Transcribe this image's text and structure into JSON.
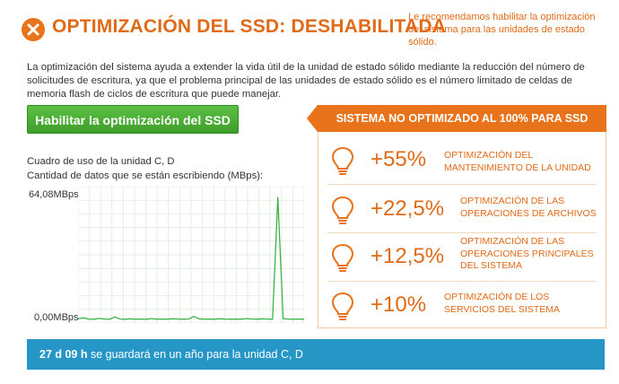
{
  "header": {
    "title": "OPTIMIZACIÓN DEL SSD: DESHABILITADA",
    "recommendation": "Le recomendamos habilitar la optimización del sistema para las unidades de estado sólido."
  },
  "description": "La optimización del sistema ayuda a extender la vida útil de la unidad de estado sólido mediante la reducción del número de solicitudes de escritura, ya que el problema principal de las unidades de estado sólido es el número limitado de celdas de memoria flash de ciclos de escritura que puede manejar.",
  "enable_button": "Habilitar la optimización del SSD",
  "chart": {
    "title_line1": "Cuadro de uso de la unidad C, D",
    "title_line2": "Cantidad de datos que se están escribiendo (MBps):",
    "y_max_label": "64,08MBps",
    "y_min_label": "0,00MBps"
  },
  "chart_data": {
    "type": "line",
    "ylim": [
      0,
      64.08
    ],
    "y_unit": "MBps",
    "grid": true,
    "series": [
      {
        "color": "#3cb34a",
        "values": [
          0.3,
          0.8,
          0.2,
          0.1,
          0.5,
          0.2,
          0.1,
          1.2,
          0.2,
          0.1,
          0.3,
          0.1,
          0.2,
          0.1,
          0.4,
          0.1,
          0.2,
          0.1,
          0.3,
          0.2,
          0.1,
          0.2,
          1.5,
          0.3,
          0.1,
          0.2,
          0.1,
          0.3,
          0.2,
          0.1,
          0.2,
          0.1,
          0.4,
          0.2,
          0.1,
          0.3,
          0.2,
          0.1,
          61.5,
          0.3,
          0.2,
          0.1,
          0.2,
          0.1
        ]
      }
    ]
  },
  "status_banner": "SISTEMA NO OPTIMIZADO AL 100% PARA SSD",
  "optimizations": [
    {
      "percent": "+55%",
      "label": "OPTIMIZACIÓN DEL MANTENIMIENTO DE LA UNIDAD",
      "icon": "lightbulb-icon"
    },
    {
      "percent": "+22,5%",
      "label": "OPTIMIZACIÓN DE LAS OPERACIONES DE ARCHIVOS",
      "icon": "lightbulb-icon"
    },
    {
      "percent": "+12,5%",
      "label": "OPTIMIZACIÓN DE LAS OPERACIONES PRINCIPALES DEL SISTEMA",
      "icon": "lightbulb-icon"
    },
    {
      "percent": "+10%",
      "label": "OPTIMIZACIÓN DE LOS SERVICIOS DEL SISTEMA",
      "icon": "lightbulb-icon"
    }
  ],
  "footer": {
    "time": "27 d 09 h",
    "text": " se guardará en un año para la unidad C, D"
  },
  "colors": {
    "accent": "#e8731a",
    "button": "#4cae35",
    "footer": "#2596c5",
    "chart_line": "#3cb34a"
  }
}
